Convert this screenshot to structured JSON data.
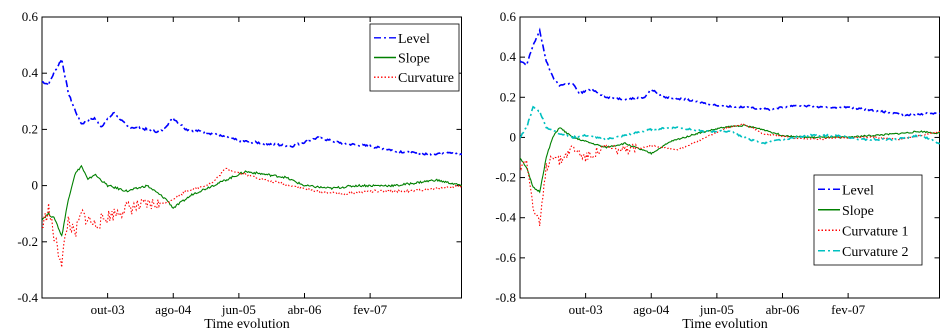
{
  "chart_data": [
    {
      "type": "line",
      "xlabel": "Time evolution",
      "ylabel": "",
      "x_range": [
        "2002-12",
        "2008-04"
      ],
      "ylim": [
        -0.4,
        0.6
      ],
      "yticks": [
        -0.4,
        -0.2,
        0,
        0.2,
        0.4,
        0.6
      ],
      "ytick_labels": [
        "-0.4",
        "-0.2",
        "0",
        "0.2",
        "0.4",
        "0.6"
      ],
      "xticks": [
        "2003-10",
        "2004-08",
        "2005-06",
        "2006-04",
        "2007-02"
      ],
      "xtick_labels": [
        "out-03",
        "ago-04",
        "jun-05",
        "abr-06",
        "fev-07"
      ],
      "legend_position": "top-right",
      "grid": false,
      "series": [
        {
          "name": "Level",
          "color": "#0000ff",
          "style": "dashdot",
          "points": [
            [
              "2002-12",
              0.37
            ],
            [
              "2003-01",
              0.36
            ],
            [
              "2003-02",
              0.41
            ],
            [
              "2003-03",
              0.45
            ],
            [
              "2003-04",
              0.33
            ],
            [
              "2003-05",
              0.27
            ],
            [
              "2003-06",
              0.22
            ],
            [
              "2003-08",
              0.24
            ],
            [
              "2003-09",
              0.21
            ],
            [
              "2003-11",
              0.26
            ],
            [
              "2004-01",
              0.21
            ],
            [
              "2004-04",
              0.2
            ],
            [
              "2004-06",
              0.19
            ],
            [
              "2004-08",
              0.24
            ],
            [
              "2004-10",
              0.2
            ],
            [
              "2005-01",
              0.19
            ],
            [
              "2005-06",
              0.16
            ],
            [
              "2005-10",
              0.15
            ],
            [
              "2006-02",
              0.14
            ],
            [
              "2006-06",
              0.17
            ],
            [
              "2006-10",
              0.15
            ],
            [
              "2007-02",
              0.14
            ],
            [
              "2007-07",
              0.12
            ],
            [
              "2007-11",
              0.11
            ],
            [
              "2008-02",
              0.12
            ],
            [
              "2008-04",
              0.11
            ]
          ]
        },
        {
          "name": "Slope",
          "color": "#008000",
          "style": "solid",
          "points": [
            [
              "2002-12",
              -0.12
            ],
            [
              "2003-01",
              -0.1
            ],
            [
              "2003-02",
              -0.12
            ],
            [
              "2003-03",
              -0.18
            ],
            [
              "2003-04",
              -0.05
            ],
            [
              "2003-05",
              0.04
            ],
            [
              "2003-06",
              0.07
            ],
            [
              "2003-07",
              0.02
            ],
            [
              "2003-08",
              0.04
            ],
            [
              "2003-10",
              0
            ],
            [
              "2004-01",
              -0.02
            ],
            [
              "2004-04",
              0
            ],
            [
              "2004-07",
              -0.05
            ],
            [
              "2004-08",
              -0.08
            ],
            [
              "2004-11",
              -0.03
            ],
            [
              "2005-03",
              0.01
            ],
            [
              "2005-07",
              0.05
            ],
            [
              "2005-10",
              0.04
            ],
            [
              "2006-01",
              0.03
            ],
            [
              "2006-04",
              0
            ],
            [
              "2006-08",
              -0.01
            ],
            [
              "2006-12",
              0
            ],
            [
              "2007-06",
              0
            ],
            [
              "2007-09",
              0.01
            ],
            [
              "2007-12",
              0.02
            ],
            [
              "2008-04",
              0
            ]
          ]
        },
        {
          "name": "Curvature",
          "color": "#ff0000",
          "style": "dotted",
          "points": [
            [
              "2002-12",
              -0.15
            ],
            [
              "2003-01",
              -0.08
            ],
            [
              "2003-02",
              -0.2
            ],
            [
              "2003-03",
              -0.27
            ],
            [
              "2003-04",
              -0.12
            ],
            [
              "2003-05",
              -0.18
            ],
            [
              "2003-06",
              -0.1
            ],
            [
              "2003-08",
              -0.14
            ],
            [
              "2003-10",
              -0.11
            ],
            [
              "2004-01",
              -0.08
            ],
            [
              "2004-04",
              -0.07
            ],
            [
              "2004-07",
              -0.06
            ],
            [
              "2004-10",
              -0.02
            ],
            [
              "2005-02",
              0.01
            ],
            [
              "2005-04",
              0.06
            ],
            [
              "2005-07",
              0.04
            ],
            [
              "2005-10",
              0.02
            ],
            [
              "2006-02",
              0
            ],
            [
              "2006-06",
              -0.02
            ],
            [
              "2006-10",
              -0.03
            ],
            [
              "2007-02",
              -0.02
            ],
            [
              "2007-08",
              -0.02
            ],
            [
              "2008-04",
              0
            ]
          ]
        }
      ]
    },
    {
      "type": "line",
      "xlabel": "Time evolution",
      "ylabel": "",
      "x_range": [
        "2002-12",
        "2008-04"
      ],
      "ylim": [
        -0.8,
        0.6
      ],
      "yticks": [
        -0.8,
        -0.6,
        -0.4,
        -0.2,
        0,
        0.2,
        0.4,
        0.6
      ],
      "ytick_labels": [
        "-0.8",
        "-0.6",
        "-0.4",
        "-0.2",
        "0",
        "0.2",
        "0.4",
        "0.6"
      ],
      "xticks": [
        "2003-10",
        "2004-08",
        "2005-06",
        "2006-04",
        "2007-02"
      ],
      "xtick_labels": [
        "out-03",
        "ago-04",
        "jun-05",
        "abr-06",
        "fev-07"
      ],
      "legend_position": "bottom-right",
      "grid": false,
      "series": [
        {
          "name": "Level",
          "color": "#0000ff",
          "style": "dashdot",
          "points": [
            [
              "2002-12",
              0.38
            ],
            [
              "2003-01",
              0.36
            ],
            [
              "2003-02",
              0.46
            ],
            [
              "2003-03",
              0.53
            ],
            [
              "2003-04",
              0.38
            ],
            [
              "2003-05",
              0.3
            ],
            [
              "2003-06",
              0.26
            ],
            [
              "2003-08",
              0.27
            ],
            [
              "2003-09",
              0.22
            ],
            [
              "2003-11",
              0.24
            ],
            [
              "2004-01",
              0.2
            ],
            [
              "2004-04",
              0.19
            ],
            [
              "2004-07",
              0.2
            ],
            [
              "2004-08",
              0.24
            ],
            [
              "2004-10",
              0.2
            ],
            [
              "2005-01",
              0.19
            ],
            [
              "2005-06",
              0.16
            ],
            [
              "2005-10",
              0.15
            ],
            [
              "2006-02",
              0.14
            ],
            [
              "2006-06",
              0.16
            ],
            [
              "2006-10",
              0.15
            ],
            [
              "2007-02",
              0.15
            ],
            [
              "2007-07",
              0.13
            ],
            [
              "2007-11",
              0.11
            ],
            [
              "2008-02",
              0.12
            ],
            [
              "2008-04",
              0.12
            ]
          ]
        },
        {
          "name": "Slope",
          "color": "#008000",
          "style": "solid",
          "points": [
            [
              "2002-12",
              -0.1
            ],
            [
              "2003-01",
              -0.15
            ],
            [
              "2003-02",
              -0.25
            ],
            [
              "2003-03",
              -0.27
            ],
            [
              "2003-04",
              -0.1
            ],
            [
              "2003-05",
              0
            ],
            [
              "2003-06",
              0.05
            ],
            [
              "2003-08",
              0
            ],
            [
              "2003-10",
              -0.02
            ],
            [
              "2004-01",
              -0.05
            ],
            [
              "2004-04",
              -0.03
            ],
            [
              "2004-08",
              -0.08
            ],
            [
              "2004-11",
              -0.02
            ],
            [
              "2005-03",
              0.02
            ],
            [
              "2005-07",
              0.05
            ],
            [
              "2005-10",
              0.06
            ],
            [
              "2006-01",
              0.04
            ],
            [
              "2006-04",
              0.01
            ],
            [
              "2006-08",
              0
            ],
            [
              "2007-01",
              0
            ],
            [
              "2007-06",
              0.01
            ],
            [
              "2007-10",
              0.02
            ],
            [
              "2008-01",
              0.03
            ],
            [
              "2008-04",
              0.02
            ]
          ]
        },
        {
          "name": "Curvature 1",
          "color": "#ff0000",
          "style": "dotted",
          "points": [
            [
              "2002-12",
              -0.15
            ],
            [
              "2003-01",
              -0.1
            ],
            [
              "2003-02",
              -0.35
            ],
            [
              "2003-03",
              -0.44
            ],
            [
              "2003-04",
              -0.15
            ],
            [
              "2003-05",
              -0.08
            ],
            [
              "2003-06",
              -0.12
            ],
            [
              "2003-08",
              -0.05
            ],
            [
              "2003-10",
              -0.1
            ],
            [
              "2004-01",
              -0.05
            ],
            [
              "2004-04",
              -0.07
            ],
            [
              "2004-08",
              -0.04
            ],
            [
              "2004-12",
              -0.06
            ],
            [
              "2005-03",
              -0.02
            ],
            [
              "2005-07",
              0.04
            ],
            [
              "2005-10",
              0.07
            ],
            [
              "2006-01",
              0.02
            ],
            [
              "2006-05",
              0
            ],
            [
              "2006-09",
              -0.01
            ],
            [
              "2007-01",
              0
            ],
            [
              "2007-06",
              0
            ],
            [
              "2007-10",
              -0.01
            ],
            [
              "2008-04",
              0.03
            ]
          ]
        },
        {
          "name": "Curvature 2",
          "color": "#00c0c0",
          "style": "dashdot",
          "points": [
            [
              "2002-12",
              0
            ],
            [
              "2003-01",
              0.05
            ],
            [
              "2003-02",
              0.15
            ],
            [
              "2003-03",
              0.13
            ],
            [
              "2003-04",
              0.05
            ],
            [
              "2003-06",
              0.02
            ],
            [
              "2003-08",
              0
            ],
            [
              "2003-10",
              0.01
            ],
            [
              "2004-01",
              -0.01
            ],
            [
              "2004-04",
              0.01
            ],
            [
              "2004-08",
              0.04
            ],
            [
              "2004-12",
              0.05
            ],
            [
              "2005-04",
              0.03
            ],
            [
              "2005-08",
              0.03
            ],
            [
              "2005-11",
              -0.01
            ],
            [
              "2006-01",
              -0.03
            ],
            [
              "2006-04",
              -0.01
            ],
            [
              "2006-08",
              0.01
            ],
            [
              "2006-12",
              0.01
            ],
            [
              "2007-04",
              -0.01
            ],
            [
              "2007-09",
              -0.01
            ],
            [
              "2008-01",
              0.01
            ],
            [
              "2008-04",
              -0.03
            ]
          ]
        }
      ]
    }
  ]
}
